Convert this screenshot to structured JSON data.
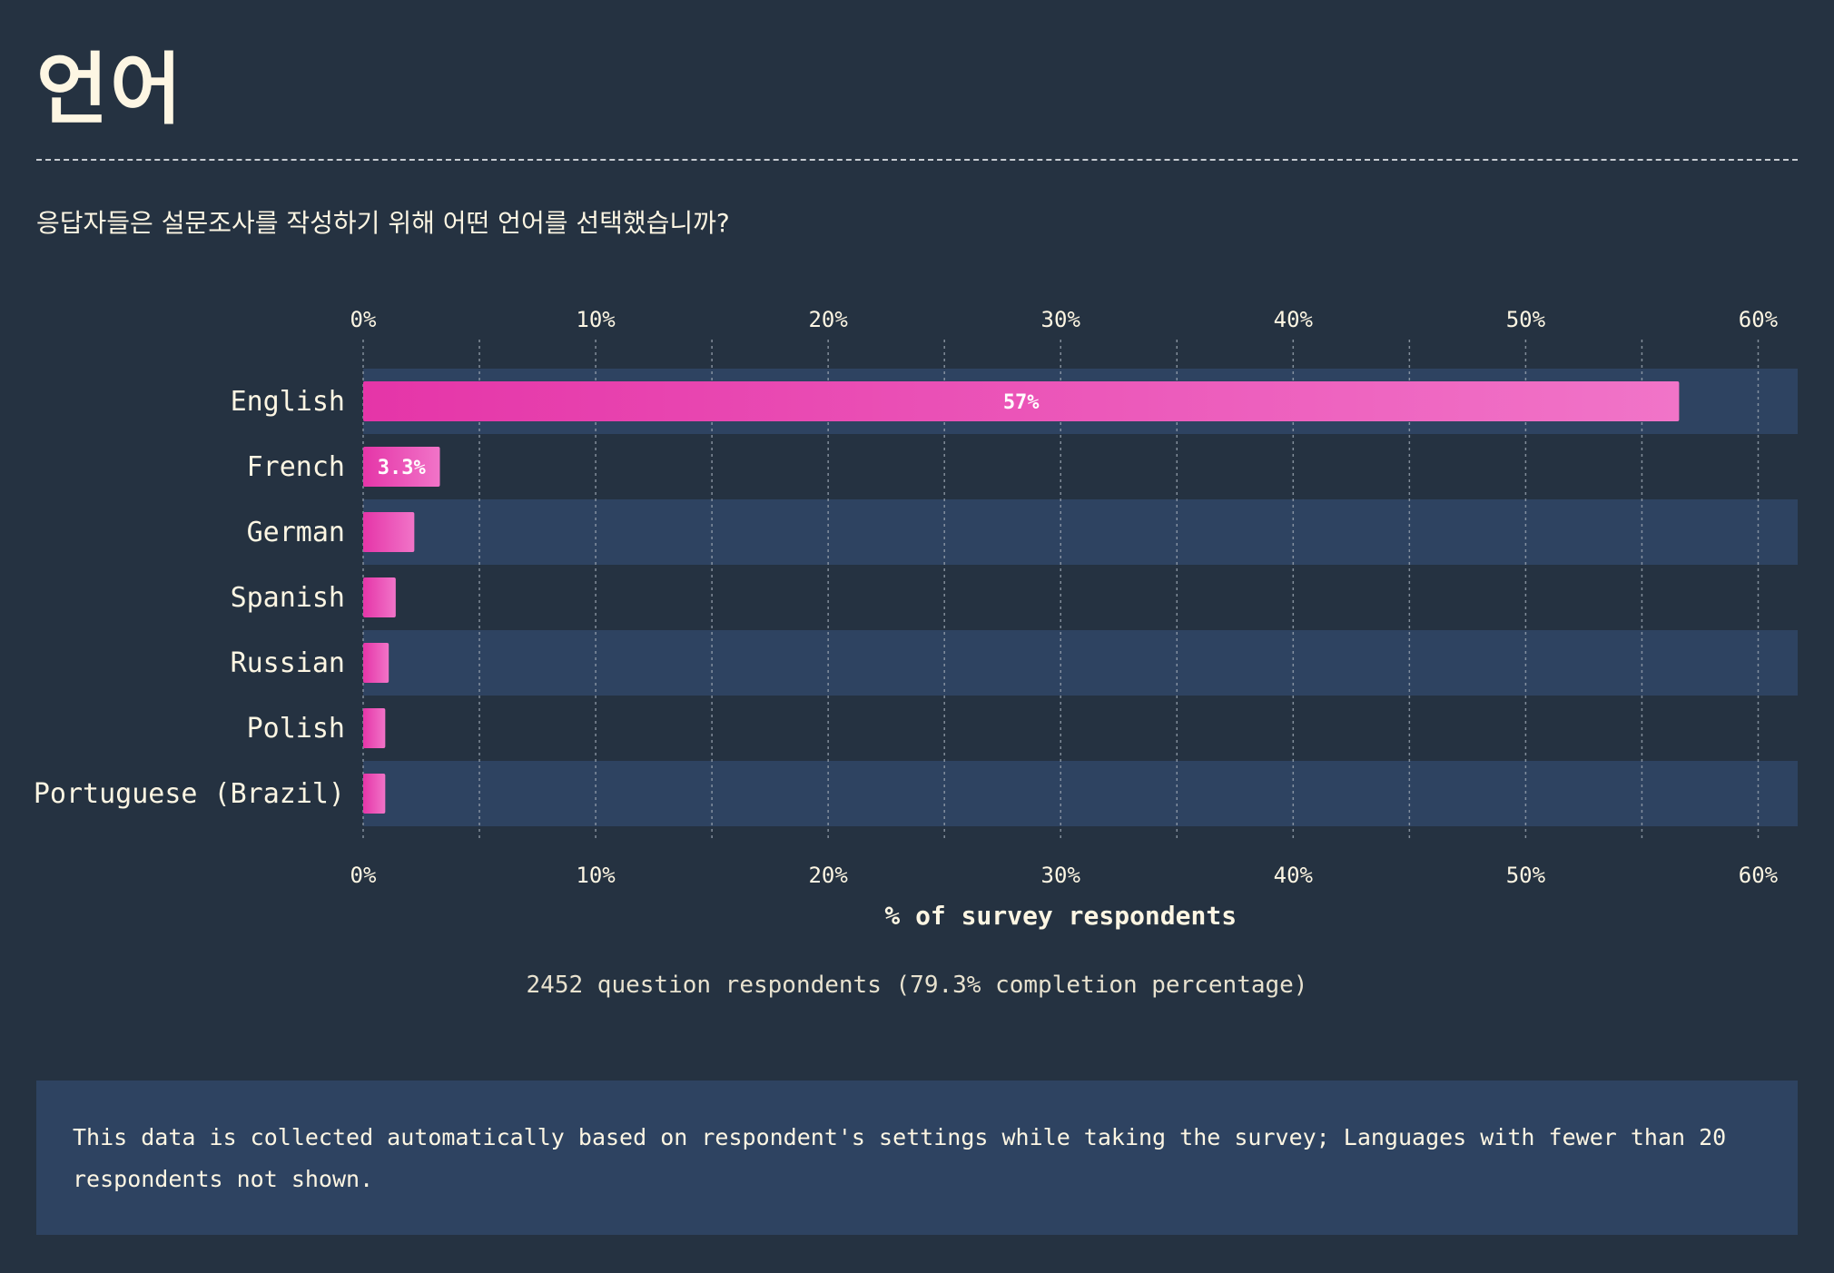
{
  "page": {
    "title": "언어",
    "subtitle": "응답자들은 설문조사를 작성하기 위해 어떤 언어를 선택했습니까?",
    "respondents": "2452 question respondents (79.3% completion percentage)",
    "note": "This data is collected automatically based on respondent's settings while taking the survey; Languages with fewer than 20 respondents not shown."
  },
  "colors": {
    "background": "#253241",
    "band": "#2e4361",
    "bar_start": "#e535a8",
    "bar_end": "#f174c8",
    "text": "#fdf6e3",
    "grid": "#9aa4b0"
  },
  "chart_data": {
    "type": "bar",
    "orientation": "horizontal",
    "categories": [
      "English",
      "French",
      "German",
      "Spanish",
      "Russian",
      "Polish",
      "Portuguese (Brazil)"
    ],
    "values": [
      56.6,
      3.3,
      2.2,
      1.4,
      1.1,
      0.95,
      0.95
    ],
    "data_labels": [
      "57%",
      "3.3%",
      "",
      "",
      "",
      "",
      ""
    ],
    "xlim": [
      0,
      61.7
    ],
    "xticks": [
      0,
      10,
      20,
      30,
      40,
      50,
      60
    ],
    "xtick_labels": [
      "0%",
      "10%",
      "20%",
      "30%",
      "40%",
      "50%",
      "60%"
    ],
    "xlabel": "% of survey respondents",
    "grid": true,
    "axis_labels_top_and_bottom": true
  }
}
